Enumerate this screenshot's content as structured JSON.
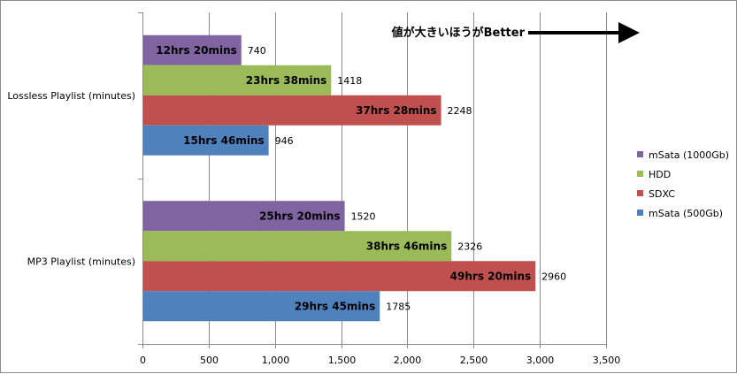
{
  "chart_data": {
    "type": "bar",
    "orientation": "horizontal",
    "categories": [
      "Lossless Playlist (minutes)",
      "MP3 Playlist (minutes)"
    ],
    "series": [
      {
        "name": "mSata (1000Gb)",
        "color": "#8064A2",
        "values": [
          740,
          1520
        ],
        "bar_labels": [
          "12hrs 20mins",
          "25hrs 20mins"
        ]
      },
      {
        "name": "HDD",
        "color": "#9BBB59",
        "values": [
          1418,
          2326
        ],
        "bar_labels": [
          "23hrs 38mins",
          "38hrs 46mins"
        ]
      },
      {
        "name": "SDXC",
        "color": "#C0504D",
        "values": [
          2248,
          2960
        ],
        "bar_labels": [
          "37hrs 28mins",
          "49hrs 20mins"
        ]
      },
      {
        "name": "mSata (500Gb)",
        "color": "#4F81BD",
        "values": [
          946,
          1785
        ],
        "bar_labels": [
          "15hrs 46mins",
          "29hrs 45mins"
        ]
      }
    ],
    "x_ticks": [
      "0",
      "500",
      "1,000",
      "1,500",
      "2,000",
      "2,500",
      "3,000",
      "3,500"
    ],
    "xlim": [
      0,
      3500
    ],
    "grid": true,
    "legend_position": "right",
    "annotation": "値が大きいほうがBetter"
  }
}
